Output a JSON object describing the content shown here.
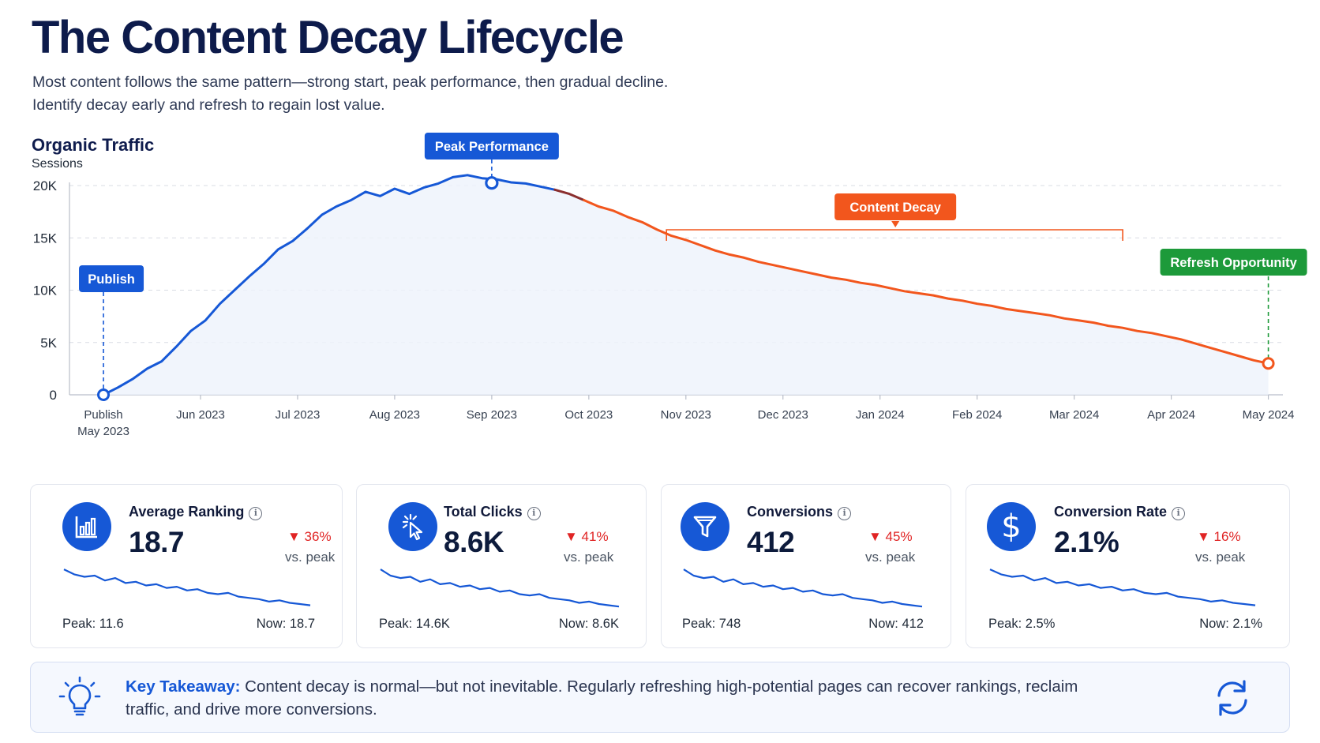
{
  "header": {
    "title": "The Content Decay Lifecycle",
    "subtitle_line1": "Most content follows the same pattern—strong start, peak performance, then gradual decline.",
    "subtitle_line2": "Identify decay early and refresh to regain lost value."
  },
  "chart_data": {
    "type": "line",
    "title": "Organic Traffic",
    "ylabel": "Sessions",
    "ylim": [
      0,
      20000
    ],
    "yticks": [
      {
        "value": 0,
        "label": "0"
      },
      {
        "value": 5000,
        "label": "5K"
      },
      {
        "value": 10000,
        "label": "10K"
      },
      {
        "value": 15000,
        "label": "15K"
      },
      {
        "value": 20000,
        "label": "20K"
      }
    ],
    "xlim": [
      -0.35,
      12.15
    ],
    "xticks": [
      {
        "pos": 0,
        "label": "Publish",
        "label2": "May 2023"
      },
      {
        "pos": 1,
        "label": "Jun 2023"
      },
      {
        "pos": 2,
        "label": "Jul 2023"
      },
      {
        "pos": 3,
        "label": "Aug 2023"
      },
      {
        "pos": 4,
        "label": "Sep 2023"
      },
      {
        "pos": 5,
        "label": "Oct 2023"
      },
      {
        "pos": 6,
        "label": "Nov 2023"
      },
      {
        "pos": 7,
        "label": "Dec 2023"
      },
      {
        "pos": 8,
        "label": "Jan 2024"
      },
      {
        "pos": 9,
        "label": "Feb 2024"
      },
      {
        "pos": 10,
        "label": "Mar 2024"
      },
      {
        "pos": 11,
        "label": "Apr 2024"
      },
      {
        "pos": 12,
        "label": "May 2024"
      }
    ],
    "series": [
      {
        "color": "#1658d6",
        "x": [
          0,
          0.15,
          0.3,
          0.45,
          0.6,
          0.75,
          0.9,
          1.05,
          1.2,
          1.35,
          1.5,
          1.65,
          1.8,
          1.95,
          2.1,
          2.25,
          2.4,
          2.55,
          2.7,
          2.85,
          3.0,
          3.15,
          3.3,
          3.45,
          3.6,
          3.75,
          3.9,
          4.05,
          4.2,
          4.35,
          4.5,
          4.65
        ],
        "y": [
          0,
          700,
          1500,
          2500,
          3200,
          4600,
          6100,
          7100,
          8700,
          10000,
          11300,
          12500,
          13900,
          14700,
          15900,
          17200,
          18000,
          18600,
          19400,
          19000,
          19700,
          19200,
          19800,
          20200,
          20800,
          21000,
          20700,
          20600,
          20300,
          20200,
          19900,
          19600
        ]
      },
      {
        "color": "#8a2e2e",
        "x": [
          4.65,
          4.8,
          4.95
        ],
        "y": [
          19600,
          19200,
          18600
        ]
      },
      {
        "color": "#f2561d",
        "x": [
          4.95,
          5.1,
          5.25,
          5.4,
          5.55,
          5.7,
          5.85,
          6.0,
          6.15,
          6.3,
          6.45,
          6.6,
          6.75,
          6.9,
          7.05,
          7.2,
          7.35,
          7.5,
          7.65,
          7.8,
          7.95,
          8.1,
          8.25,
          8.4,
          8.55,
          8.7,
          8.85,
          9.0,
          9.15,
          9.3,
          9.45,
          9.6,
          9.75,
          9.9,
          10.05,
          10.2,
          10.35,
          10.5,
          10.65,
          10.8,
          10.95,
          11.1,
          11.25,
          11.4,
          11.55,
          11.7,
          11.85,
          12.0
        ],
        "y": [
          18600,
          18000,
          17600,
          17000,
          16500,
          15800,
          15200,
          14800,
          14300,
          13800,
          13400,
          13100,
          12700,
          12400,
          12100,
          11800,
          11500,
          11200,
          11000,
          10700,
          10500,
          10200,
          9900,
          9700,
          9500,
          9200,
          9000,
          8700,
          8500,
          8200,
          8000,
          7800,
          7600,
          7300,
          7100,
          6900,
          6600,
          6400,
          6100,
          5900,
          5600,
          5300,
          4900,
          4500,
          4100,
          3700,
          3300,
          3000
        ]
      }
    ],
    "annotations": {
      "publish": {
        "label": "Publish",
        "x": 0,
        "y": 0,
        "color": "#1658d6"
      },
      "peak": {
        "label": "Peak Performance",
        "x": 4.0,
        "y": 20400,
        "color": "#1658d6"
      },
      "decay": {
        "label": "Content Decay",
        "x_start": 5.8,
        "x_end": 10.5,
        "color": "#f2561d"
      },
      "refresh": {
        "label": "Refresh Opportunity",
        "x": 12.0,
        "y": 3000,
        "color": "#1d9a3a"
      }
    }
  },
  "cards": [
    {
      "icon": "bar-chart-icon",
      "label": "Average Ranking",
      "value": "18.7",
      "delta": "▼ 36%",
      "vs": "vs. peak",
      "peak": "Peak: 11.6",
      "now": "Now: 18.7",
      "spark": [
        60,
        56,
        54,
        55,
        51,
        53,
        49,
        50,
        47,
        48,
        45,
        46,
        43,
        44,
        41,
        40,
        41,
        38,
        37,
        36,
        34,
        35,
        33,
        32,
        31
      ]
    },
    {
      "icon": "click-icon",
      "label": "Total Clicks",
      "value": "8.6K",
      "delta": "▼ 41%",
      "vs": "vs. peak",
      "peak": "Peak: 14.6K",
      "now": "Now: 8.6K",
      "spark": [
        60,
        55,
        53,
        54,
        50,
        52,
        48,
        49,
        46,
        47,
        44,
        45,
        42,
        43,
        40,
        39,
        40,
        37,
        36,
        35,
        33,
        34,
        32,
        31,
        30
      ]
    },
    {
      "icon": "funnel-icon",
      "label": "Conversions",
      "value": "412",
      "delta": "▼ 45%",
      "vs": "vs. peak",
      "peak": "Peak: 748",
      "now": "Now: 412",
      "spark": [
        60,
        55,
        53,
        54,
        50,
        52,
        48,
        49,
        46,
        47,
        44,
        45,
        42,
        43,
        40,
        39,
        40,
        37,
        36,
        35,
        33,
        34,
        32,
        31,
        30
      ]
    },
    {
      "icon": "dollar-icon",
      "label": "Conversion Rate",
      "value": "2.1%",
      "delta": "▼ 16%",
      "vs": "vs. peak",
      "peak": "Peak: 2.5%",
      "now": "Now: 2.1%",
      "spark": [
        60,
        56,
        54,
        55,
        51,
        53,
        49,
        50,
        47,
        48,
        45,
        46,
        43,
        44,
        41,
        40,
        41,
        38,
        37,
        36,
        34,
        35,
        33,
        32,
        31
      ]
    }
  ],
  "takeaway": {
    "label": "Key Takeaway:",
    "text": " Content decay is normal—but not inevitable. Regularly refreshing high-potential pages can recover rankings, reclaim traffic, and drive more conversions."
  },
  "colors": {
    "primary": "#1658d6",
    "decay": "#f2561d",
    "refresh": "#1d9a3a",
    "down": "#e02424"
  }
}
